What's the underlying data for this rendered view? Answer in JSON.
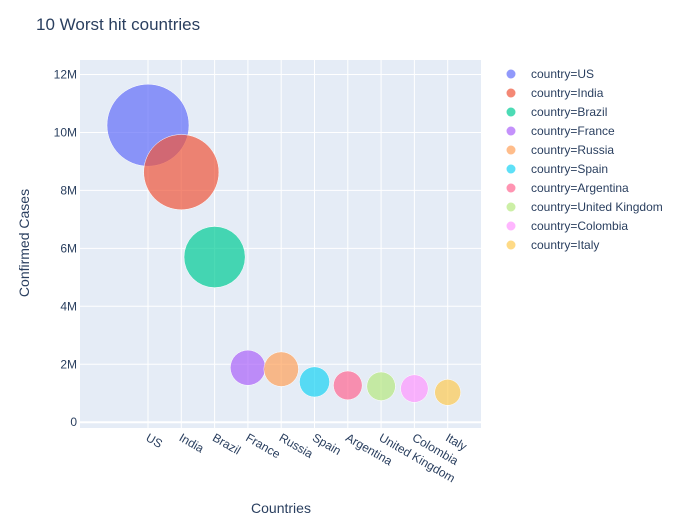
{
  "chart_data": {
    "type": "scatter",
    "title": "10 Worst hit countries",
    "xlabel": "Countries",
    "ylabel": "Confirmed Cases",
    "categories": [
      "US",
      "India",
      "Brazil",
      "France",
      "Russia",
      "Spain",
      "Argentina",
      "United Kingdom",
      "Colombia",
      "Italy"
    ],
    "y_ticks": [
      0,
      2000000,
      4000000,
      6000000,
      8000000,
      10000000,
      12000000
    ],
    "y_tick_labels": [
      "0",
      "2M",
      "4M",
      "6M",
      "8M",
      "10M",
      "12M"
    ],
    "ylim": [
      -200000,
      12500000
    ],
    "grid": true,
    "legend_position": "right",
    "series": [
      {
        "name": "country=US",
        "x": "US",
        "y": 10250000,
        "color": "#636efa"
      },
      {
        "name": "country=India",
        "x": "India",
        "y": 8630000,
        "color": "#EF553B"
      },
      {
        "name": "country=Brazil",
        "x": "Brazil",
        "y": 5700000,
        "color": "#00cc96"
      },
      {
        "name": "country=France",
        "x": "France",
        "y": 1880000,
        "color": "#ab63fa"
      },
      {
        "name": "country=Russia",
        "x": "Russia",
        "y": 1830000,
        "color": "#FFA15A"
      },
      {
        "name": "country=Spain",
        "x": "Spain",
        "y": 1390000,
        "color": "#19d3f3"
      },
      {
        "name": "country=Argentina",
        "x": "Argentina",
        "y": 1270000,
        "color": "#FF6692"
      },
      {
        "name": "country=United Kingdom",
        "x": "United Kingdom",
        "y": 1240000,
        "color": "#B6E880"
      },
      {
        "name": "country=Colombia",
        "x": "Colombia",
        "y": 1160000,
        "color": "#FF97FF"
      },
      {
        "name": "country=Italy",
        "x": "Italy",
        "y": 1030000,
        "color": "#FECB52"
      }
    ]
  }
}
